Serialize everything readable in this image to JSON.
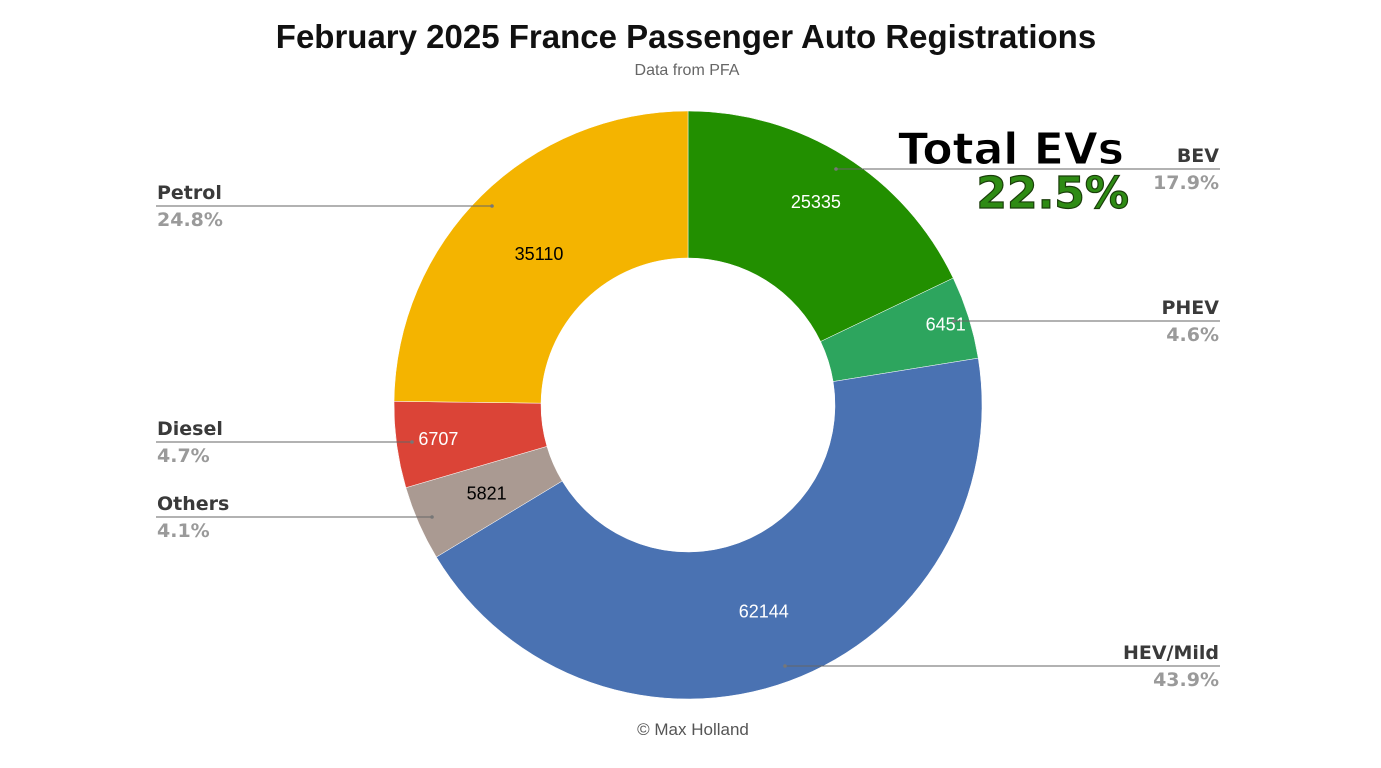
{
  "chart_data": {
    "type": "pie",
    "donut": true,
    "title": "February 2025 France Passenger Auto Registrations",
    "subtitle": "Data from PFA",
    "slices": [
      {
        "name": "BEV",
        "value": 25335,
        "percent": "17.9%",
        "color": "#228f00",
        "value_text_color": "#ffffff",
        "side": "right"
      },
      {
        "name": "PHEV",
        "value": 6451,
        "percent": "4.6%",
        "color": "#2da55e",
        "value_text_color": "#ffffff",
        "side": "right"
      },
      {
        "name": "HEV/Mild",
        "value": 62144,
        "percent": "43.9%",
        "color": "#4a72b2",
        "value_text_color": "#ffffff",
        "side": "right"
      },
      {
        "name": "Others",
        "value": 5821,
        "percent": "4.1%",
        "color": "#aa9a92",
        "value_text_color": "#000000",
        "side": "left"
      },
      {
        "name": "Diesel",
        "value": 6707,
        "percent": "4.7%",
        "color": "#db4437",
        "value_text_color": "#ffffff",
        "side": "left"
      },
      {
        "name": "Petrol",
        "value": 35110,
        "percent": "24.8%",
        "color": "#f4b400",
        "value_text_color": "#000000",
        "side": "left"
      }
    ],
    "start": "top",
    "direction": "clockwise",
    "callout": {
      "title": "Total EVs",
      "value": "22.5%"
    },
    "footer": "© Max Holland"
  }
}
